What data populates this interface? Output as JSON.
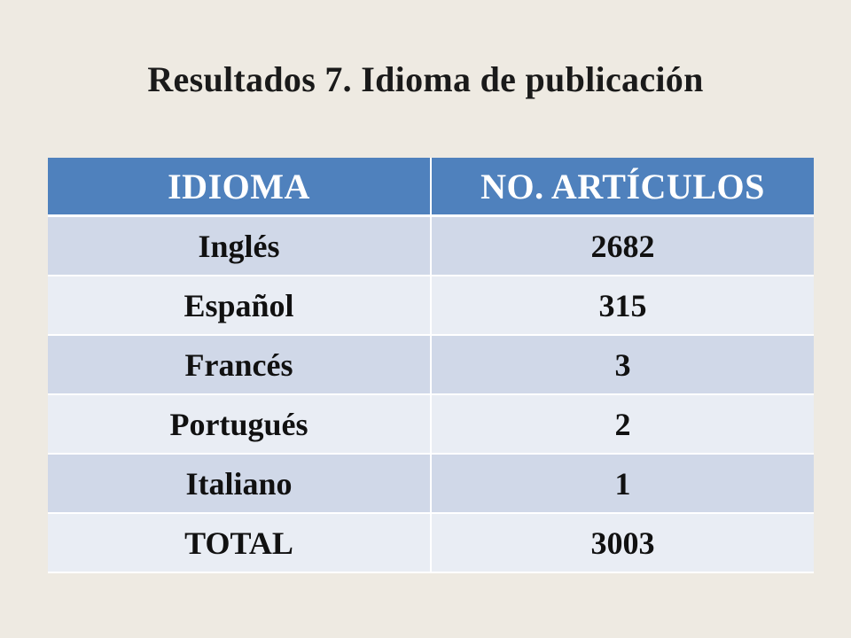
{
  "slide": {
    "title": "Resultados  7.  Idioma de publicación"
  },
  "table": {
    "headers": [
      "IDIOMA",
      "NO. ARTÍCULOS"
    ],
    "rows": [
      {
        "idioma": "Inglés",
        "articulos": "2682"
      },
      {
        "idioma": "Español",
        "articulos": "315"
      },
      {
        "idioma": "Francés",
        "articulos": "3"
      },
      {
        "idioma": "Portugués",
        "articulos": "2"
      },
      {
        "idioma": "Italiano",
        "articulos": "1"
      },
      {
        "idioma": "TOTAL",
        "articulos": "3003"
      }
    ]
  },
  "colors": {
    "background": "#EEEAE2",
    "header": "#4F81BD",
    "row_band_1": "#D0D8E8",
    "row_band_2": "#E9EDF4"
  }
}
